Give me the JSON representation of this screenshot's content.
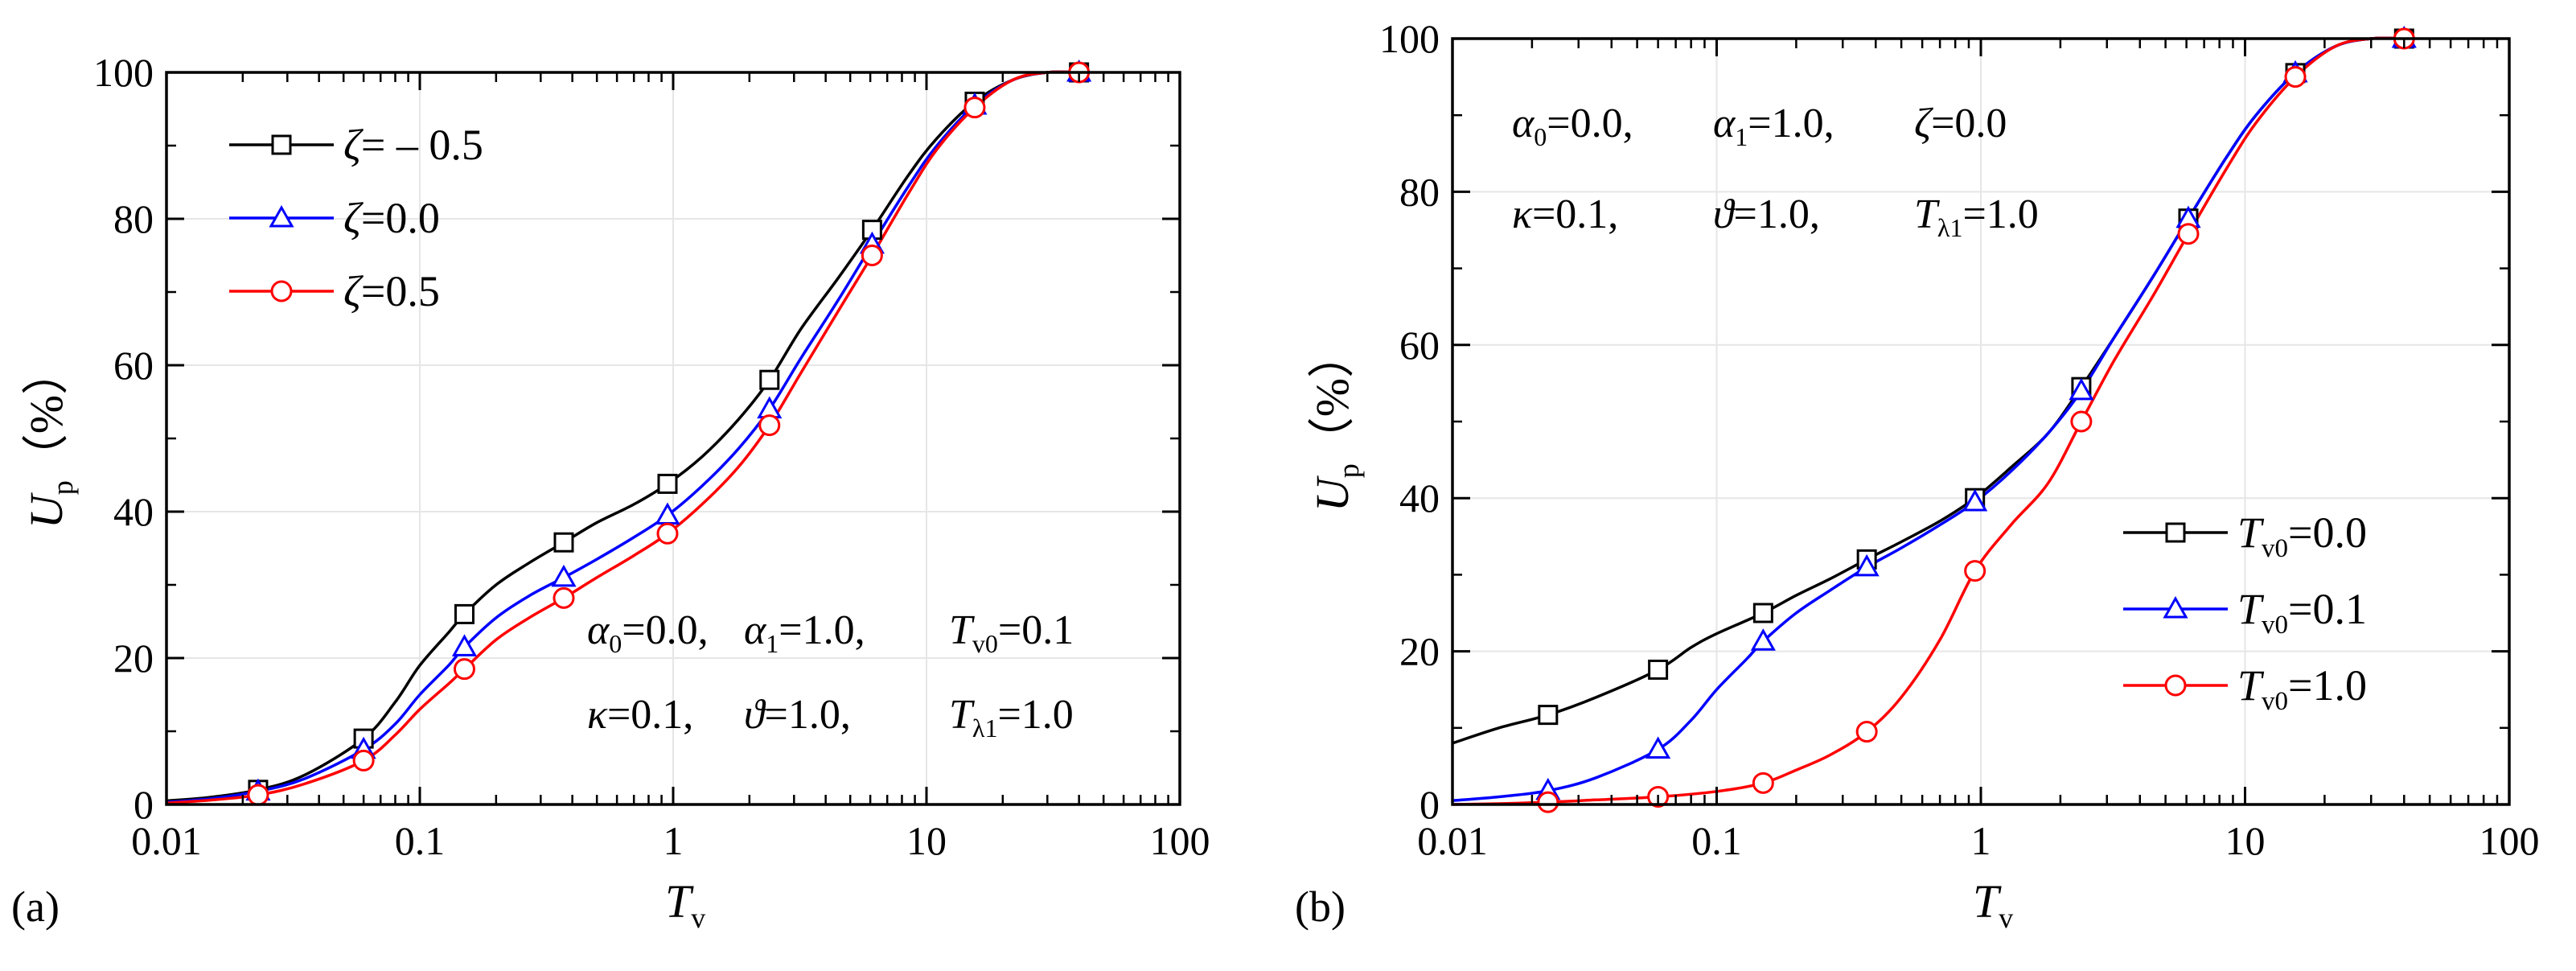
{
  "chart_data": [
    {
      "type": "line",
      "panel_label": "(a)",
      "xscale": "log",
      "xlim": [
        0.01,
        100
      ],
      "ylim": [
        0,
        100
      ],
      "xticks": [
        "0.01",
        "0.1",
        "1",
        "10",
        "100"
      ],
      "yticks": [
        "0",
        "20",
        "40",
        "60",
        "80",
        "100"
      ],
      "xlabel": "T",
      "xlabel_sub": "v",
      "ylabel": "U",
      "ylabel_sub": "p",
      "ylabel_unit": "（%）",
      "grid": true,
      "legend_position": "top-left",
      "series": [
        {
          "name": "ζ= – 0.5",
          "color": "#000000",
          "marker": "square",
          "curve": [
            [
              0.01,
              0.5
            ],
            [
              0.015,
              1
            ],
            [
              0.023,
              2
            ],
            [
              0.035,
              4
            ],
            [
              0.06,
              9
            ],
            [
              0.08,
              14
            ],
            [
              0.1,
              19
            ],
            [
              0.13,
              23.5
            ],
            [
              0.15,
              26
            ],
            [
              0.2,
              30
            ],
            [
              0.27,
              33
            ],
            [
              0.37,
              35.8
            ],
            [
              0.5,
              38.5
            ],
            [
              0.7,
              41
            ],
            [
              0.95,
              43.8
            ],
            [
              1.3,
              47.5
            ],
            [
              1.8,
              52.5
            ],
            [
              2.4,
              58
            ],
            [
              3.2,
              65
            ],
            [
              4.5,
              72
            ],
            [
              6.1,
              78.5
            ],
            [
              8.5,
              86
            ],
            [
              11,
              91
            ],
            [
              15.5,
              96
            ],
            [
              22,
              99
            ],
            [
              30,
              100
            ],
            [
              40,
              100
            ]
          ],
          "markers": [
            [
              0.023,
              2
            ],
            [
              0.06,
              9
            ],
            [
              0.15,
              26
            ],
            [
              0.37,
              35.8
            ],
            [
              0.95,
              43.8
            ],
            [
              2.4,
              58
            ],
            [
              6.1,
              78.5
            ],
            [
              15.5,
              96
            ],
            [
              40,
              100
            ]
          ]
        },
        {
          "name": "ζ=0.0",
          "color": "#0000ff",
          "marker": "triangle",
          "curve": [
            [
              0.01,
              0.3
            ],
            [
              0.015,
              0.8
            ],
            [
              0.023,
              1.8
            ],
            [
              0.035,
              3.5
            ],
            [
              0.06,
              7.5
            ],
            [
              0.08,
              11
            ],
            [
              0.1,
              15
            ],
            [
              0.13,
              19
            ],
            [
              0.15,
              21.5
            ],
            [
              0.2,
              25.5
            ],
            [
              0.27,
              28.5
            ],
            [
              0.37,
              31
            ],
            [
              0.5,
              33.5
            ],
            [
              0.7,
              36.5
            ],
            [
              0.95,
              39.5
            ],
            [
              1.3,
              43.5
            ],
            [
              1.8,
              48.5
            ],
            [
              2.4,
              54
            ],
            [
              3.2,
              61
            ],
            [
              4.5,
              69
            ],
            [
              6.1,
              76.5
            ],
            [
              8.5,
              84.5
            ],
            [
              11,
              90
            ],
            [
              15.5,
              95.5
            ],
            [
              22,
              99
            ],
            [
              30,
              100
            ],
            [
              40,
              100
            ]
          ],
          "markers": [
            [
              0.023,
              1.8
            ],
            [
              0.06,
              7.5
            ],
            [
              0.15,
              21.5
            ],
            [
              0.37,
              31
            ],
            [
              0.95,
              39.5
            ],
            [
              2.4,
              54
            ],
            [
              6.1,
              76.5
            ],
            [
              15.5,
              95.5
            ],
            [
              40,
              100
            ]
          ]
        },
        {
          "name": "ζ=0.5",
          "color": "#ff0000",
          "marker": "circle",
          "curve": [
            [
              0.01,
              0.2
            ],
            [
              0.015,
              0.6
            ],
            [
              0.023,
              1.3
            ],
            [
              0.035,
              2.8
            ],
            [
              0.06,
              6
            ],
            [
              0.08,
              9.5
            ],
            [
              0.1,
              13
            ],
            [
              0.13,
              16.5
            ],
            [
              0.15,
              18.5
            ],
            [
              0.2,
              22.5
            ],
            [
              0.27,
              25.5
            ],
            [
              0.37,
              28.2
            ],
            [
              0.5,
              31
            ],
            [
              0.7,
              34
            ],
            [
              0.95,
              37
            ],
            [
              1.3,
              41
            ],
            [
              1.8,
              46
            ],
            [
              2.4,
              51.8
            ],
            [
              3.2,
              59
            ],
            [
              4.5,
              67.5
            ],
            [
              6.1,
              75
            ],
            [
              8.5,
              83.5
            ],
            [
              11,
              89.5
            ],
            [
              15.5,
              95.2
            ],
            [
              22,
              99
            ],
            [
              30,
              100
            ],
            [
              40,
              100
            ]
          ],
          "markers": [
            [
              0.023,
              1.3
            ],
            [
              0.06,
              6
            ],
            [
              0.15,
              18.5
            ],
            [
              0.37,
              28.2
            ],
            [
              0.95,
              37
            ],
            [
              2.4,
              51.8
            ],
            [
              6.1,
              75
            ],
            [
              15.5,
              95.2
            ],
            [
              40,
              100
            ]
          ]
        }
      ],
      "annotations": [
        {
          "line": 1,
          "parts": [
            [
              "α",
              "0",
              "=0.0,"
            ],
            [
              "α",
              "1",
              "=1.0,"
            ],
            [
              "T",
              "v0",
              "=0.1"
            ]
          ]
        },
        {
          "line": 2,
          "parts": [
            [
              "κ",
              "",
              "=0.1,"
            ],
            [
              "ϑ",
              "",
              "=1.0,"
            ],
            [
              "T",
              "λ1",
              "=1.0"
            ]
          ]
        }
      ]
    },
    {
      "type": "line",
      "panel_label": "(b)",
      "xscale": "log",
      "xlim": [
        0.01,
        100
      ],
      "ylim": [
        0,
        100
      ],
      "xticks": [
        "0.01",
        "0.1",
        "1",
        "10",
        "100"
      ],
      "yticks": [
        "0",
        "20",
        "40",
        "60",
        "80",
        "100"
      ],
      "xlabel": "T",
      "xlabel_sub": "v",
      "ylabel": "U",
      "ylabel_sub": "p",
      "ylabel_unit": "（%）",
      "grid": true,
      "legend_position": "bottom-right",
      "series": [
        {
          "name": "T",
          "name_sub": "v0",
          "name_rest": "=0.0",
          "color": "#000000",
          "marker": "square",
          "curve": [
            [
              0.01,
              8
            ],
            [
              0.015,
              10
            ],
            [
              0.023,
              11.7
            ],
            [
              0.035,
              14
            ],
            [
              0.06,
              17.6
            ],
            [
              0.08,
              20.5
            ],
            [
              0.1,
              22.3
            ],
            [
              0.15,
              25
            ],
            [
              0.2,
              27.3
            ],
            [
              0.27,
              29.5
            ],
            [
              0.37,
              32
            ],
            [
              0.5,
              34.3
            ],
            [
              0.7,
              37
            ],
            [
              0.95,
              40
            ],
            [
              1.3,
              44
            ],
            [
              1.8,
              48.5
            ],
            [
              2.4,
              54.5
            ],
            [
              3.2,
              61
            ],
            [
              4.5,
              69
            ],
            [
              6.1,
              76.5
            ],
            [
              8.5,
              84.5
            ],
            [
              11,
              90
            ],
            [
              15.5,
              95.5
            ],
            [
              22,
              99
            ],
            [
              30,
              100
            ],
            [
              40,
              100
            ]
          ],
          "markers": [
            [
              0.023,
              11.7
            ],
            [
              0.06,
              17.6
            ],
            [
              0.15,
              25
            ],
            [
              0.37,
              32
            ],
            [
              0.95,
              40
            ],
            [
              2.4,
              54.5
            ],
            [
              6.1,
              76.5
            ],
            [
              15.5,
              95.5
            ],
            [
              40,
              100
            ]
          ]
        },
        {
          "name": "T",
          "name_sub": "v0",
          "name_rest": "=0.1",
          "color": "#0000ff",
          "marker": "triangle",
          "curve": [
            [
              0.01,
              0.5
            ],
            [
              0.015,
              1
            ],
            [
              0.023,
              1.8
            ],
            [
              0.035,
              3.5
            ],
            [
              0.06,
              7.2
            ],
            [
              0.08,
              11
            ],
            [
              0.1,
              15
            ],
            [
              0.13,
              19
            ],
            [
              0.15,
              21.3
            ],
            [
              0.2,
              25
            ],
            [
              0.27,
              28
            ],
            [
              0.37,
              31
            ],
            [
              0.5,
              33.5
            ],
            [
              0.7,
              36.5
            ],
            [
              0.95,
              39.5
            ],
            [
              1.3,
              43.5
            ],
            [
              1.8,
              48.5
            ],
            [
              2.4,
              54
            ],
            [
              3.2,
              61
            ],
            [
              4.5,
              69
            ],
            [
              6.1,
              76.5
            ],
            [
              8.5,
              84.5
            ],
            [
              11,
              90
            ],
            [
              15.5,
              95.5
            ],
            [
              22,
              99
            ],
            [
              30,
              100
            ],
            [
              40,
              100
            ]
          ],
          "markers": [
            [
              0.023,
              1.8
            ],
            [
              0.06,
              7.2
            ],
            [
              0.15,
              21.3
            ],
            [
              0.37,
              31
            ],
            [
              0.95,
              39.5
            ],
            [
              2.4,
              54
            ],
            [
              6.1,
              76.5
            ],
            [
              15.5,
              95.5
            ],
            [
              40,
              100
            ]
          ]
        },
        {
          "name": "T",
          "name_sub": "v0",
          "name_rest": "=1.0",
          "color": "#ff0000",
          "marker": "circle",
          "curve": [
            [
              0.01,
              0
            ],
            [
              0.015,
              0.1
            ],
            [
              0.023,
              0.3
            ],
            [
              0.035,
              0.6
            ],
            [
              0.06,
              1
            ],
            [
              0.1,
              1.7
            ],
            [
              0.15,
              2.8
            ],
            [
              0.2,
              4.5
            ],
            [
              0.27,
              6.5
            ],
            [
              0.37,
              9.5
            ],
            [
              0.5,
              14
            ],
            [
              0.7,
              21.5
            ],
            [
              0.95,
              30.5
            ],
            [
              1.3,
              36.5
            ],
            [
              1.8,
              42
            ],
            [
              2.4,
              50
            ],
            [
              3.2,
              58
            ],
            [
              4.5,
              66.5
            ],
            [
              6.1,
              74.5
            ],
            [
              8.5,
              83
            ],
            [
              11,
              89
            ],
            [
              15.5,
              95
            ],
            [
              22,
              99
            ],
            [
              30,
              100
            ],
            [
              40,
              100
            ]
          ],
          "markers": [
            [
              0.023,
              0.3
            ],
            [
              0.06,
              1
            ],
            [
              0.15,
              2.8
            ],
            [
              0.37,
              9.5
            ],
            [
              0.95,
              30.5
            ],
            [
              2.4,
              50
            ],
            [
              6.1,
              74.5
            ],
            [
              15.5,
              95
            ],
            [
              40,
              100
            ]
          ]
        }
      ],
      "annotations": [
        {
          "line": 1,
          "parts": [
            [
              "α",
              "0",
              "=0.0,"
            ],
            [
              "α",
              "1",
              "=1.0,"
            ],
            [
              "ζ",
              "",
              "=0.0"
            ]
          ]
        },
        {
          "line": 2,
          "parts": [
            [
              "κ",
              "",
              "=0.1,"
            ],
            [
              "ϑ",
              "",
              "=1.0,"
            ],
            [
              "T",
              "λ1",
              "=1.0"
            ]
          ]
        }
      ]
    }
  ]
}
